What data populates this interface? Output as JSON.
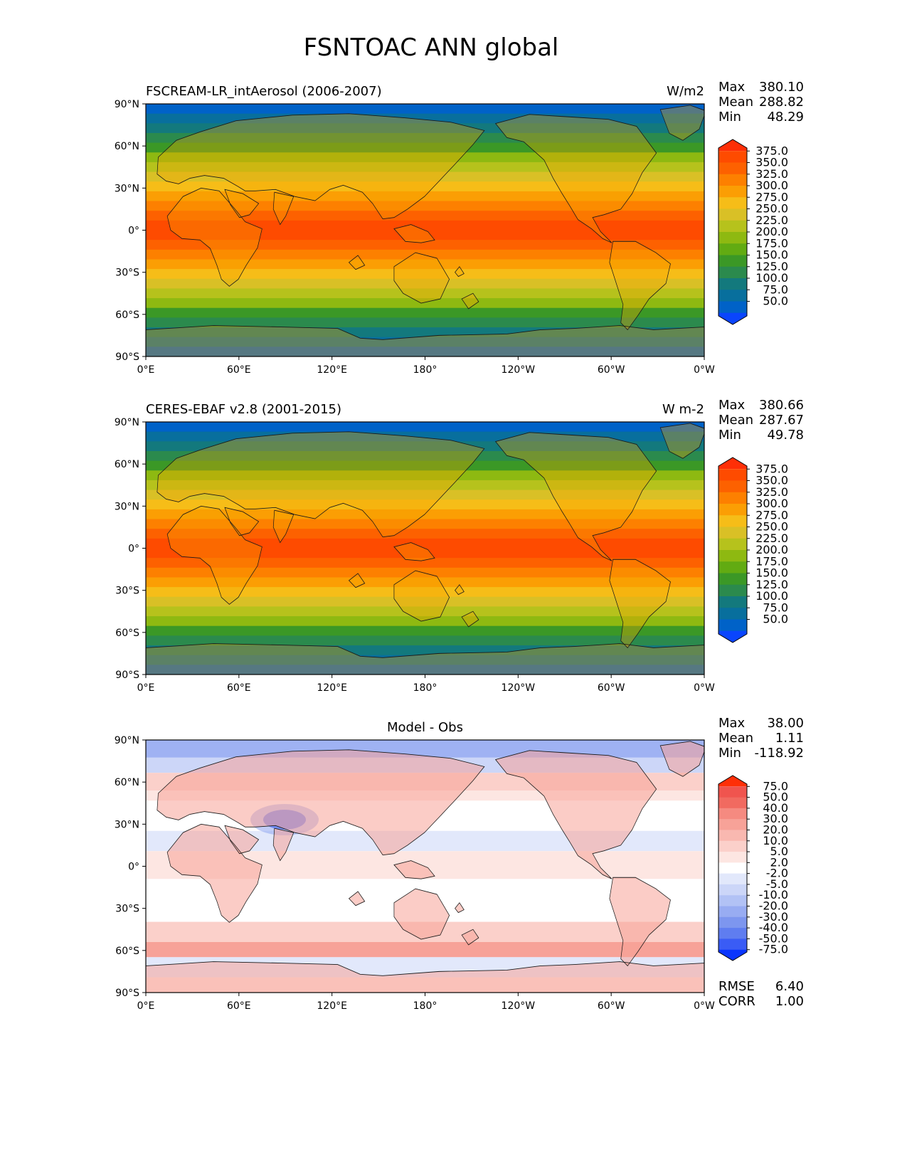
{
  "title": "FSNTOAC ANN global",
  "lat_ticks": [
    "90°N",
    "60°N",
    "30°N",
    "0°",
    "30°S",
    "60°S",
    "90°S"
  ],
  "lon_ticks": [
    "0°E",
    "60°E",
    "120°E",
    "180°",
    "120°W",
    "60°W",
    "0°W"
  ],
  "panels": [
    {
      "left_title": "FSCREAM-LR_intAerosol (2006-2007)",
      "center_title": "",
      "right_title": "W/m2",
      "stats": [
        {
          "label": "Max",
          "value": "380.10"
        },
        {
          "label": "Mean",
          "value": "288.82"
        },
        {
          "label": "Min",
          "value": "48.29"
        }
      ],
      "bottom_stats": [],
      "colorbar": {
        "labels": [
          "375.0",
          "350.0",
          "325.0",
          "300.0",
          "275.0",
          "250.0",
          "225.0",
          "200.0",
          "175.0",
          "150.0",
          "125.0",
          "100.0",
          "75.0",
          "50.0"
        ],
        "colors": [
          "#fe2f07",
          "#fe4b00",
          "#fd6100",
          "#fd8000",
          "#fb9e04",
          "#f6bd18",
          "#d9c026",
          "#b6c21c",
          "#8eb911",
          "#62ab12",
          "#3b9826",
          "#2b8a4d",
          "#13797d",
          "#086f9d",
          "#0062c8",
          "#0a45fd"
        ]
      }
    },
    {
      "left_title": "CERES-EBAF v2.8 (2001-2015)",
      "center_title": "",
      "right_title": "W m-2",
      "stats": [
        {
          "label": "Max",
          "value": "380.66"
        },
        {
          "label": "Mean",
          "value": "287.67"
        },
        {
          "label": "Min",
          "value": "49.78"
        }
      ],
      "bottom_stats": [],
      "colorbar": {
        "labels": [
          "375.0",
          "350.0",
          "325.0",
          "300.0",
          "275.0",
          "250.0",
          "225.0",
          "200.0",
          "175.0",
          "150.0",
          "125.0",
          "100.0",
          "75.0",
          "50.0"
        ],
        "colors": [
          "#fe2f07",
          "#fe4b00",
          "#fd6100",
          "#fd8000",
          "#fb9e04",
          "#f6bd18",
          "#d9c026",
          "#b6c21c",
          "#8eb911",
          "#62ab12",
          "#3b9826",
          "#2b8a4d",
          "#13797d",
          "#086f9d",
          "#0062c8",
          "#0a45fd"
        ]
      }
    },
    {
      "left_title": "",
      "center_title": "Model - Obs",
      "right_title": "",
      "stats": [
        {
          "label": "Max",
          "value": "38.00"
        },
        {
          "label": "Mean",
          "value": "1.11"
        },
        {
          "label": "Min",
          "value": "-118.92"
        }
      ],
      "bottom_stats": [
        {
          "label": "RMSE",
          "value": "6.40"
        },
        {
          "label": "CORR",
          "value": "1.00"
        }
      ],
      "colorbar": {
        "labels": [
          "75.0",
          "50.0",
          "40.0",
          "30.0",
          "20.0",
          "10.0",
          "5.0",
          "2.0",
          "-2.0",
          "-5.0",
          "-10.0",
          "-20.0",
          "-30.0",
          "-40.0",
          "-50.0",
          "-75.0"
        ],
        "colors": [
          "#fe2f07",
          "#f0544e",
          "#f16a60",
          "#f58a80",
          "#f7a298",
          "#f9b8b0",
          "#fbd0ca",
          "#fde6e2",
          "#ffffff",
          "#e2e8fb",
          "#ccd6f8",
          "#b2c2f5",
          "#98acf2",
          "#7d96ef",
          "#5f7df0",
          "#3a5cf5",
          "#0a35fd"
        ]
      }
    }
  ],
  "chart_data": {
    "type": "heatmap",
    "title": "FSNTOAC ANN global",
    "x_range": [
      0,
      360
    ],
    "y_range": [
      -90,
      90
    ],
    "panels": [
      {
        "name": "FSCREAM-LR_intAerosol (2006-2007)",
        "units": "W/m2",
        "max": 380.1,
        "mean": 288.82,
        "min": 48.29,
        "levels": [
          50,
          75,
          100,
          125,
          150,
          175,
          200,
          225,
          250,
          275,
          300,
          325,
          350,
          375
        ]
      },
      {
        "name": "CERES-EBAF v2.8 (2001-2015)",
        "units": "W m-2",
        "max": 380.66,
        "mean": 287.67,
        "min": 49.78,
        "levels": [
          50,
          75,
          100,
          125,
          150,
          175,
          200,
          225,
          250,
          275,
          300,
          325,
          350,
          375
        ]
      },
      {
        "name": "Model - Obs",
        "max": 38.0,
        "mean": 1.11,
        "min": -118.92,
        "rmse": 6.4,
        "corr": 1.0,
        "levels": [
          -75,
          -50,
          -40,
          -30,
          -20,
          -10,
          -5,
          -2,
          2,
          5,
          10,
          20,
          30,
          40,
          50,
          75
        ]
      }
    ]
  }
}
